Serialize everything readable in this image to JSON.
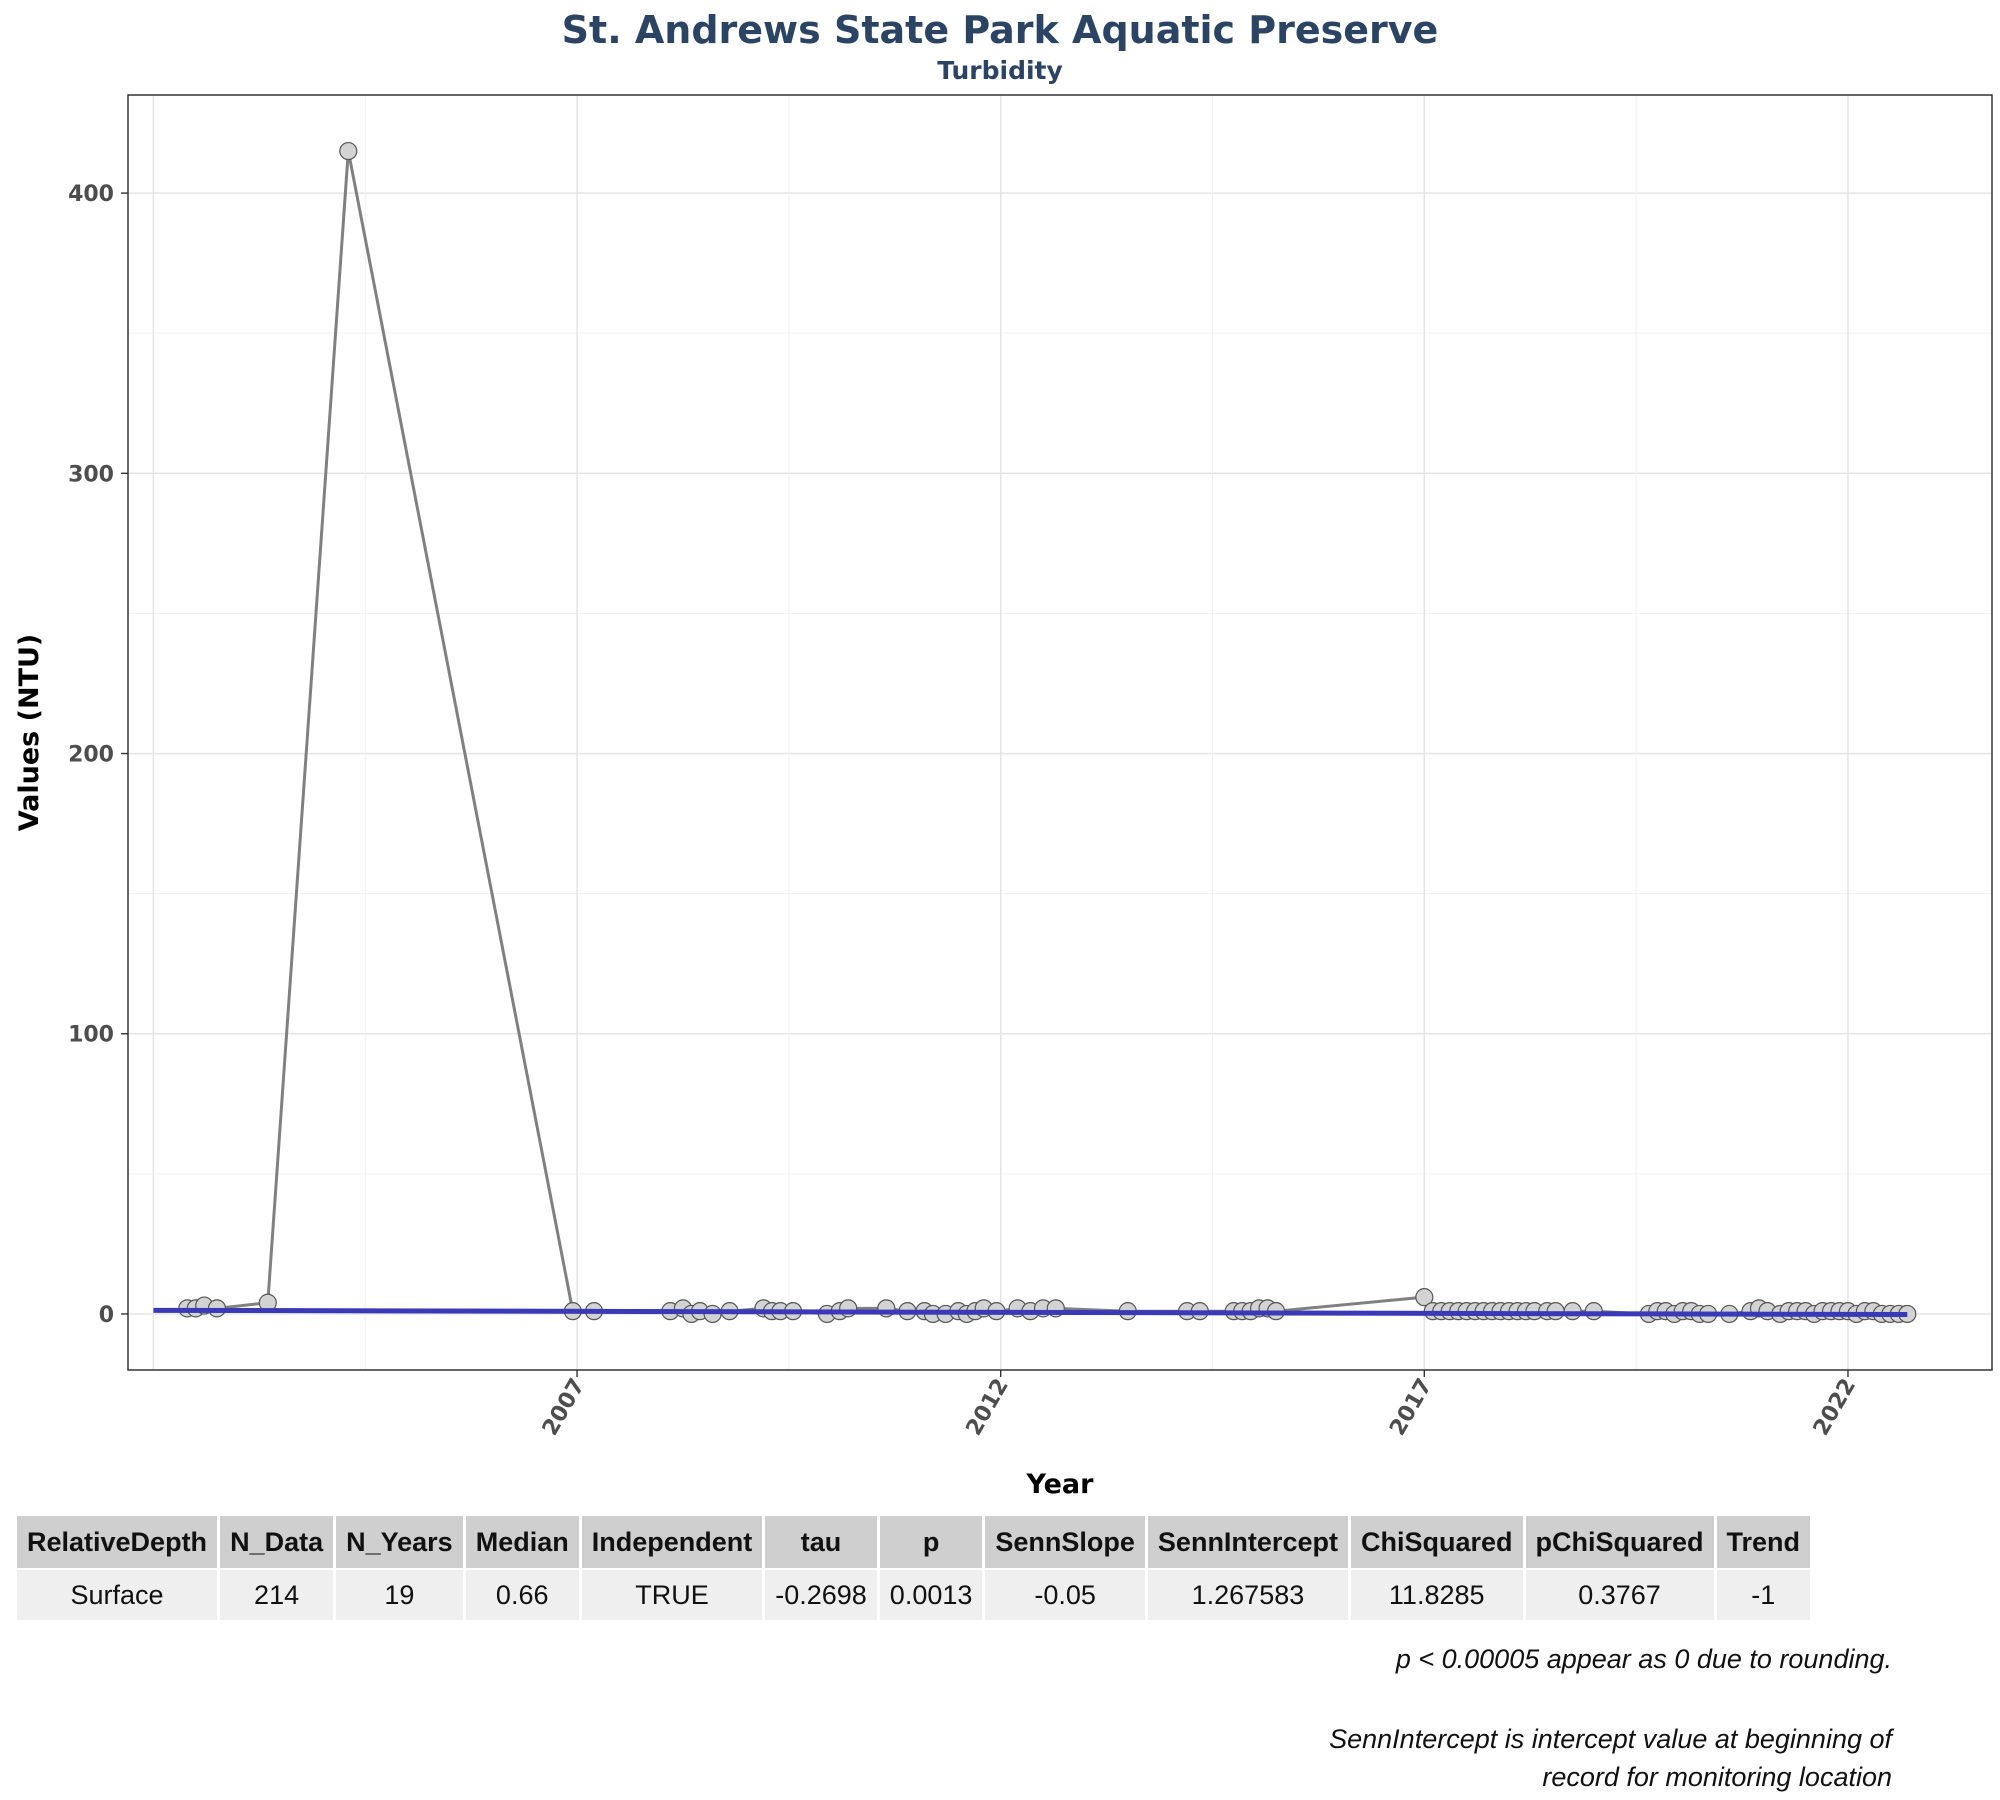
{
  "title": "St. Andrews State Park Aquatic Preserve",
  "subtitle": "Turbidity",
  "chart_data": {
    "type": "line",
    "title": "St. Andrews State Park Aquatic Preserve",
    "subtitle": "Turbidity",
    "xlabel": "Year",
    "ylabel": "Values (NTU)",
    "xlim": [
      2001.7,
      2023.7
    ],
    "ylim": [
      -20,
      435
    ],
    "x_ticks": [
      "2007",
      "2012",
      "2017",
      "2022"
    ],
    "y_ticks": [
      "0",
      "100",
      "200",
      "300",
      "400"
    ],
    "grid": true,
    "colors": {
      "line": "#808080",
      "point_fill": "#d3d3d3",
      "point_stroke": "#555555",
      "trend": "#3a3ab8"
    },
    "series": [
      {
        "x": [
          2002.4,
          2002.5,
          2002.6,
          2002.75,
          2003.35,
          2004.3,
          2006.95,
          2007.2,
          2008.1,
          2008.25,
          2008.35,
          2008.45,
          2008.6,
          2008.8,
          2009.2,
          2009.3,
          2009.4,
          2009.55,
          2009.95,
          2010.1,
          2010.2,
          2010.65,
          2010.9,
          2011.1,
          2011.2,
          2011.35,
          2011.5,
          2011.6,
          2011.7,
          2011.8,
          2011.95,
          2012.2,
          2012.35,
          2012.5,
          2012.65,
          2013.5,
          2014.2,
          2014.35,
          2014.75,
          2014.85,
          2014.95,
          2015.05,
          2015.15,
          2015.25,
          2017.0,
          2017.1,
          2017.2,
          2017.3,
          2017.4,
          2017.5,
          2017.6,
          2017.7,
          2017.8,
          2017.9,
          2018.0,
          2018.1,
          2018.2,
          2018.3,
          2018.45,
          2018.55,
          2018.75,
          2019.0,
          2019.65,
          2019.75,
          2019.85,
          2019.95,
          2020.05,
          2020.15,
          2020.25,
          2020.35,
          2020.6,
          2020.85,
          2020.95,
          2021.05,
          2021.2,
          2021.3,
          2021.4,
          2021.5,
          2021.6,
          2021.7,
          2021.8,
          2021.9,
          2022.0,
          2022.1,
          2022.2,
          2022.3,
          2022.4,
          2022.5,
          2022.6,
          2022.7
        ],
        "y": [
          2,
          2,
          3,
          2,
          4,
          415,
          1,
          1,
          1,
          2,
          0,
          1,
          0,
          1,
          2,
          1,
          1,
          1,
          0,
          1,
          2,
          2,
          1,
          1,
          0,
          0,
          1,
          0,
          1,
          2,
          1,
          2,
          1,
          2,
          2,
          1,
          1,
          1,
          1,
          1,
          1,
          2,
          2,
          1,
          6,
          1,
          1,
          1,
          1,
          1,
          1,
          1,
          1,
          1,
          1,
          1,
          1,
          1,
          1,
          1,
          1,
          1,
          0,
          1,
          1,
          0,
          1,
          1,
          0,
          0,
          0,
          1,
          2,
          1,
          0,
          1,
          1,
          1,
          0,
          1,
          1,
          1,
          1,
          0,
          1,
          1,
          0,
          0,
          0,
          0
        ]
      }
    ],
    "trend": {
      "x": [
        2002.0,
        2022.7
      ],
      "y": [
        1.3,
        -0.2
      ]
    }
  },
  "table": {
    "headers": [
      "RelativeDepth",
      "N_Data",
      "N_Years",
      "Median",
      "Independent",
      "tau",
      "p",
      "SennSlope",
      "SennIntercept",
      "ChiSquared",
      "pChiSquared",
      "Trend"
    ],
    "rows": [
      [
        "Surface",
        "214",
        "19",
        "0.66",
        "TRUE",
        "-0.2698",
        "0.0013",
        "-0.05",
        "1.267583",
        "11.8285",
        "0.3767",
        "-1"
      ]
    ]
  },
  "notes": {
    "note1": "p < 0.00005 appear as 0 due to rounding.",
    "note2_line1": "SennIntercept is intercept value at beginning of",
    "note2_line2": "record for monitoring location"
  }
}
